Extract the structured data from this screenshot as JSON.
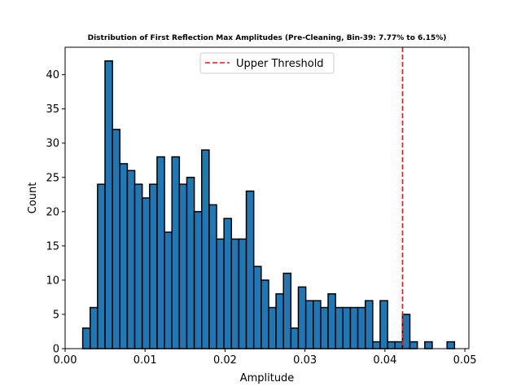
{
  "chart_data": {
    "type": "bar",
    "title": "Distribution of First Reflection Max Amplitudes (Pre-Cleaning, Bin-39: 7.77% to 6.15%)",
    "xlabel": "Amplitude",
    "ylabel": "Count",
    "xlim": [
      0.0,
      0.0505
    ],
    "ylim": [
      0,
      44
    ],
    "xticks": [
      "0.00",
      "0.01",
      "0.02",
      "0.03",
      "0.04",
      "0.05"
    ],
    "yticks": [
      "0",
      "5",
      "10",
      "15",
      "20",
      "25",
      "30",
      "35",
      "40"
    ],
    "bin_start": 0.0022,
    "bin_width": 0.00093,
    "counts": [
      3,
      6,
      24,
      42,
      32,
      27,
      26,
      24,
      22,
      24,
      28,
      17,
      28,
      24,
      25,
      20,
      29,
      21,
      16,
      19,
      16,
      16,
      23,
      12,
      10,
      6,
      8,
      11,
      3,
      9,
      7,
      7,
      6,
      8,
      6,
      6,
      6,
      6,
      7,
      1,
      7,
      1,
      1,
      5,
      1,
      0,
      1,
      0,
      0,
      1
    ],
    "bar_color": "#1f77b4",
    "edge_color": "#000000",
    "threshold": {
      "label": "Upper Threshold",
      "x": 0.0422,
      "color": "#e41a1c",
      "style": "dashed"
    },
    "legend_position": "top-center",
    "grid": false
  }
}
